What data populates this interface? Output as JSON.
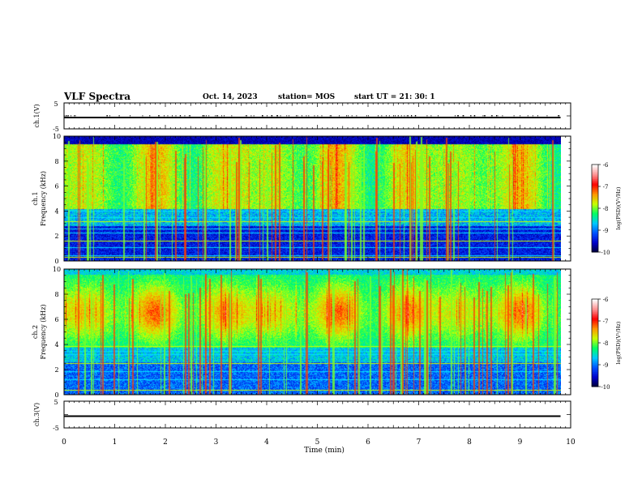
{
  "header": {
    "title": "VLF Spectra",
    "date": "Oct. 14, 2023",
    "station": "station= MOS",
    "start": "start  UT  =   21: 30: 1"
  },
  "chart_data": [
    {
      "type": "line",
      "panel": "ch1-waveform",
      "ylabel": "ch.1(V)",
      "ylim": [
        -5,
        5
      ],
      "yticks": [
        "5",
        "-5"
      ],
      "xlim": [
        0,
        10
      ],
      "series": [
        {
          "x": [
            0,
            9.8
          ],
          "y": [
            0,
            0
          ]
        }
      ]
    },
    {
      "type": "heatmap",
      "panel": "ch1-spectrogram",
      "ylabel_line1": "ch.1",
      "ylabel_line2": "Frequency (kHz)",
      "ylim": [
        0,
        10
      ],
      "yticks": [
        "0",
        "2",
        "4",
        "6",
        "8",
        "10"
      ],
      "xlim": [
        0,
        10
      ],
      "data_xmax": 9.8,
      "colorbar": {
        "label": "log(PSD)(V²/Hz)",
        "range": [
          -10,
          -6
        ],
        "ticks": [
          "-6",
          "-7",
          "-8",
          "-9",
          "-10"
        ]
      },
      "colorscale": [
        "#000030",
        "#0000c8",
        "#0050ff",
        "#00c8ff",
        "#00ff64",
        "#c8ff00",
        "#ff9600",
        "#ff0000",
        "#ff9090",
        "#ffffff"
      ]
    },
    {
      "type": "heatmap",
      "panel": "ch2-spectrogram",
      "ylabel_line1": "ch.2",
      "ylabel_line2": "Frequency (kHz)",
      "ylim": [
        0,
        10
      ],
      "yticks": [
        "0",
        "2",
        "4",
        "6",
        "8",
        "10"
      ],
      "xlim": [
        0,
        10
      ],
      "data_xmax": 9.8,
      "colorbar": {
        "label": "log(PSD)(V²/Hz)",
        "range": [
          -10,
          -6
        ],
        "ticks": [
          "-6",
          "-7",
          "-8",
          "-9",
          "-10"
        ]
      }
    },
    {
      "type": "line",
      "panel": "ch3-waveform",
      "ylabel": "ch.3(V)",
      "ylim": [
        -5,
        5
      ],
      "yticks": [
        "5",
        "-5"
      ],
      "xlim": [
        0,
        10
      ],
      "xlabel": "Time  (min)",
      "xticks": [
        "0",
        "1",
        "2",
        "3",
        "4",
        "5",
        "6",
        "7",
        "8",
        "9",
        "10"
      ],
      "series": [
        {
          "x": [
            0,
            9.8
          ],
          "y": [
            0,
            0
          ]
        }
      ]
    }
  ]
}
